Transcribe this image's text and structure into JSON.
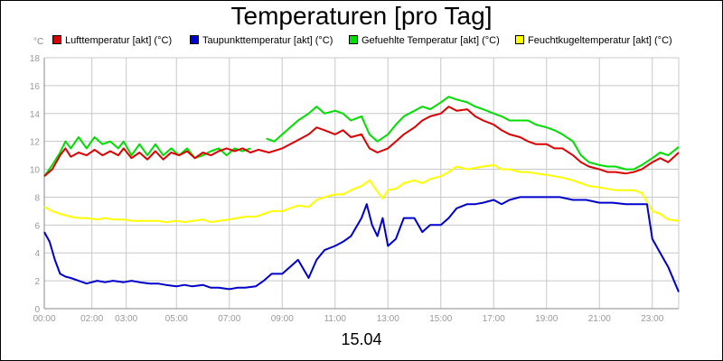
{
  "chart_data": {
    "type": "line",
    "title": "Temperaturen [pro Tag]",
    "xlabel": "15.04",
    "ylabel": "°C",
    "xlim": [
      0,
      24
    ],
    "ylim": [
      0,
      18
    ],
    "yticks": [
      0,
      2,
      4,
      6,
      8,
      10,
      12,
      14,
      16,
      18
    ],
    "xticks": [
      {
        "h": 0,
        "label": "00:00"
      },
      {
        "h": 1.8,
        "label": "02:00"
      },
      {
        "h": 3.1,
        "label": "03:00"
      },
      {
        "h": 5,
        "label": "05:00"
      },
      {
        "h": 7,
        "label": "07:00"
      },
      {
        "h": 9,
        "label": "09:00"
      },
      {
        "h": 11,
        "label": "11:00"
      },
      {
        "h": 13,
        "label": "13:00"
      },
      {
        "h": 15,
        "label": "15:00"
      },
      {
        "h": 17,
        "label": "17:00"
      },
      {
        "h": 19,
        "label": "19:00"
      },
      {
        "h": 21,
        "label": "21:00"
      },
      {
        "h": 23,
        "label": "23:00"
      }
    ],
    "grid": true,
    "legend_position": "top",
    "series": [
      {
        "name": "Lufttemperatur [akt] (°C)",
        "color": "#dd0000",
        "points": [
          [
            0,
            9.5
          ],
          [
            0.3,
            10
          ],
          [
            0.6,
            11
          ],
          [
            0.8,
            11.5
          ],
          [
            1,
            10.9
          ],
          [
            1.3,
            11.2
          ],
          [
            1.6,
            11
          ],
          [
            1.9,
            11.4
          ],
          [
            2.2,
            11
          ],
          [
            2.5,
            11.3
          ],
          [
            2.8,
            11
          ],
          [
            3,
            11.5
          ],
          [
            3.3,
            10.8
          ],
          [
            3.6,
            11.2
          ],
          [
            3.9,
            10.7
          ],
          [
            4.2,
            11.3
          ],
          [
            4.5,
            10.7
          ],
          [
            4.8,
            11.2
          ],
          [
            5.1,
            11
          ],
          [
            5.4,
            11.3
          ],
          [
            5.7,
            10.8
          ],
          [
            6,
            11.2
          ],
          [
            6.3,
            11
          ],
          [
            6.6,
            11.3
          ],
          [
            6.9,
            11.5
          ],
          [
            7.2,
            11.3
          ],
          [
            7.5,
            11.5
          ],
          [
            7.8,
            11.2
          ],
          [
            8.1,
            11.4
          ],
          [
            8.5,
            11.2
          ],
          [
            9,
            11.5
          ],
          [
            9.5,
            12
          ],
          [
            10,
            12.5
          ],
          [
            10.3,
            13
          ],
          [
            10.6,
            12.8
          ],
          [
            11,
            12.5
          ],
          [
            11.3,
            12.8
          ],
          [
            11.6,
            12.3
          ],
          [
            12,
            12.5
          ],
          [
            12.3,
            11.5
          ],
          [
            12.6,
            11.2
          ],
          [
            13,
            11.5
          ],
          [
            13.3,
            12
          ],
          [
            13.6,
            12.5
          ],
          [
            14,
            13
          ],
          [
            14.3,
            13.5
          ],
          [
            14.6,
            13.8
          ],
          [
            15,
            14
          ],
          [
            15.3,
            14.5
          ],
          [
            15.6,
            14.2
          ],
          [
            16,
            14.3
          ],
          [
            16.3,
            13.8
          ],
          [
            16.6,
            13.5
          ],
          [
            17,
            13.2
          ],
          [
            17.3,
            12.8
          ],
          [
            17.6,
            12.5
          ],
          [
            18,
            12.3
          ],
          [
            18.3,
            12
          ],
          [
            18.6,
            11.8
          ],
          [
            19,
            11.8
          ],
          [
            19.3,
            11.5
          ],
          [
            19.6,
            11.5
          ],
          [
            20,
            11
          ],
          [
            20.3,
            10.5
          ],
          [
            20.6,
            10.2
          ],
          [
            21,
            10
          ],
          [
            21.3,
            9.8
          ],
          [
            21.6,
            9.8
          ],
          [
            22,
            9.7
          ],
          [
            22.3,
            9.8
          ],
          [
            22.6,
            10
          ],
          [
            23,
            10.5
          ],
          [
            23.3,
            10.8
          ],
          [
            23.6,
            10.5
          ],
          [
            24,
            11.2
          ]
        ]
      },
      {
        "name": "Taupunkttemperatur [akt] (°C)",
        "color": "#0000cc",
        "points": [
          [
            0,
            5.5
          ],
          [
            0.2,
            4.8
          ],
          [
            0.4,
            3.5
          ],
          [
            0.6,
            2.5
          ],
          [
            0.8,
            2.3
          ],
          [
            1,
            2.2
          ],
          [
            1.3,
            2
          ],
          [
            1.6,
            1.8
          ],
          [
            2,
            2
          ],
          [
            2.3,
            1.9
          ],
          [
            2.6,
            2
          ],
          [
            3,
            1.9
          ],
          [
            3.3,
            2
          ],
          [
            3.6,
            1.9
          ],
          [
            4,
            1.8
          ],
          [
            4.3,
            1.8
          ],
          [
            4.6,
            1.7
          ],
          [
            5,
            1.6
          ],
          [
            5.3,
            1.7
          ],
          [
            5.6,
            1.6
          ],
          [
            6,
            1.7
          ],
          [
            6.3,
            1.5
          ],
          [
            6.6,
            1.5
          ],
          [
            7,
            1.4
          ],
          [
            7.3,
            1.5
          ],
          [
            7.6,
            1.5
          ],
          [
            8,
            1.6
          ],
          [
            8.3,
            2
          ],
          [
            8.6,
            2.5
          ],
          [
            9,
            2.5
          ],
          [
            9.3,
            3
          ],
          [
            9.6,
            3.5
          ],
          [
            10,
            2.2
          ],
          [
            10.3,
            3.5
          ],
          [
            10.6,
            4.2
          ],
          [
            11,
            4.5
          ],
          [
            11.3,
            4.8
          ],
          [
            11.6,
            5.2
          ],
          [
            12,
            6.5
          ],
          [
            12.2,
            7.5
          ],
          [
            12.4,
            6
          ],
          [
            12.6,
            5.2
          ],
          [
            12.8,
            6.5
          ],
          [
            13,
            4.5
          ],
          [
            13.3,
            5
          ],
          [
            13.6,
            6.5
          ],
          [
            14,
            6.5
          ],
          [
            14.3,
            5.5
          ],
          [
            14.6,
            6
          ],
          [
            15,
            6
          ],
          [
            15.3,
            6.5
          ],
          [
            15.6,
            7.2
          ],
          [
            16,
            7.5
          ],
          [
            16.3,
            7.5
          ],
          [
            16.6,
            7.6
          ],
          [
            17,
            7.8
          ],
          [
            17.3,
            7.5
          ],
          [
            17.6,
            7.8
          ],
          [
            18,
            8
          ],
          [
            18.5,
            8
          ],
          [
            19,
            8
          ],
          [
            19.5,
            8
          ],
          [
            20,
            7.8
          ],
          [
            20.5,
            7.8
          ],
          [
            21,
            7.6
          ],
          [
            21.5,
            7.6
          ],
          [
            22,
            7.5
          ],
          [
            22.5,
            7.5
          ],
          [
            22.8,
            7.5
          ],
          [
            23,
            5
          ],
          [
            23.3,
            4
          ],
          [
            23.6,
            3
          ],
          [
            24,
            1.2
          ]
        ]
      },
      {
        "name": "Gefuehlte Temperatur [akt] (°C)",
        "color": "#00dd00",
        "segments": [
          [
            [
              0,
              9.5
            ],
            [
              0.3,
              10.3
            ],
            [
              0.6,
              11.2
            ],
            [
              0.8,
              12
            ],
            [
              1,
              11.5
            ],
            [
              1.3,
              12.3
            ],
            [
              1.6,
              11.5
            ],
            [
              1.9,
              12.3
            ],
            [
              2.2,
              11.8
            ],
            [
              2.5,
              12
            ],
            [
              2.8,
              11.5
            ],
            [
              3,
              12
            ],
            [
              3.3,
              11
            ],
            [
              3.6,
              11.8
            ],
            [
              3.9,
              11
            ],
            [
              4.2,
              11.8
            ],
            [
              4.5,
              11
            ],
            [
              4.8,
              11.5
            ],
            [
              5.1,
              11
            ],
            [
              5.4,
              11.5
            ],
            [
              5.7,
              10.8
            ],
            [
              6,
              11
            ],
            [
              6.3,
              11.3
            ],
            [
              6.6,
              11.5
            ],
            [
              6.9,
              11
            ],
            [
              7.2,
              11.5
            ],
            [
              7.5,
              11.3
            ],
            [
              7.8,
              11.5
            ]
          ],
          [
            [
              8.4,
              12.2
            ],
            [
              8.7,
              12
            ],
            [
              9,
              12.5
            ],
            [
              9.3,
              13
            ],
            [
              9.6,
              13.5
            ],
            [
              10,
              14
            ],
            [
              10.3,
              14.5
            ],
            [
              10.6,
              14
            ],
            [
              11,
              14.2
            ],
            [
              11.3,
              14
            ],
            [
              11.6,
              13.5
            ],
            [
              12,
              13.8
            ],
            [
              12.3,
              12.5
            ],
            [
              12.6,
              12
            ],
            [
              13,
              12.5
            ],
            [
              13.3,
              13.2
            ],
            [
              13.6,
              13.8
            ],
            [
              14,
              14.2
            ],
            [
              14.3,
              14.5
            ],
            [
              14.6,
              14.3
            ],
            [
              15,
              14.8
            ],
            [
              15.3,
              15.2
            ],
            [
              15.6,
              15
            ],
            [
              16,
              14.8
            ],
            [
              16.3,
              14.5
            ],
            [
              16.6,
              14.3
            ],
            [
              17,
              14
            ],
            [
              17.3,
              13.8
            ],
            [
              17.6,
              13.5
            ],
            [
              18,
              13.5
            ],
            [
              18.3,
              13.5
            ],
            [
              18.6,
              13.2
            ],
            [
              19,
              13
            ],
            [
              19.3,
              12.8
            ],
            [
              19.6,
              12.5
            ],
            [
              20,
              12
            ],
            [
              20.3,
              11
            ],
            [
              20.6,
              10.5
            ],
            [
              21,
              10.3
            ],
            [
              21.3,
              10.2
            ],
            [
              21.6,
              10.2
            ],
            [
              22,
              10
            ],
            [
              22.3,
              10
            ],
            [
              22.6,
              10.3
            ],
            [
              23,
              10.8
            ],
            [
              23.3,
              11.2
            ],
            [
              23.6,
              11
            ],
            [
              24,
              11.6
            ]
          ]
        ]
      },
      {
        "name": "Feuchtkugeltemperatur [akt] (°C)",
        "color": "#ffff00",
        "points": [
          [
            0,
            7.3
          ],
          [
            0.3,
            7
          ],
          [
            0.6,
            6.8
          ],
          [
            1,
            6.6
          ],
          [
            1.3,
            6.5
          ],
          [
            1.6,
            6.5
          ],
          [
            2,
            6.4
          ],
          [
            2.3,
            6.5
          ],
          [
            2.6,
            6.4
          ],
          [
            3,
            6.4
          ],
          [
            3.3,
            6.3
          ],
          [
            3.6,
            6.3
          ],
          [
            4,
            6.3
          ],
          [
            4.3,
            6.3
          ],
          [
            4.6,
            6.2
          ],
          [
            5,
            6.3
          ],
          [
            5.3,
            6.2
          ],
          [
            5.6,
            6.3
          ],
          [
            6,
            6.4
          ],
          [
            6.3,
            6.2
          ],
          [
            6.6,
            6.3
          ],
          [
            7,
            6.4
          ],
          [
            7.3,
            6.5
          ],
          [
            7.6,
            6.6
          ],
          [
            8,
            6.6
          ],
          [
            8.3,
            6.8
          ],
          [
            8.6,
            7
          ],
          [
            9,
            7
          ],
          [
            9.3,
            7.2
          ],
          [
            9.6,
            7.4
          ],
          [
            10,
            7.3
          ],
          [
            10.3,
            7.8
          ],
          [
            10.6,
            8
          ],
          [
            11,
            8.2
          ],
          [
            11.3,
            8.2
          ],
          [
            11.6,
            8.5
          ],
          [
            12,
            8.8
          ],
          [
            12.3,
            9.2
          ],
          [
            12.6,
            8.4
          ],
          [
            12.8,
            7.9
          ],
          [
            13,
            8.5
          ],
          [
            13.3,
            8.6
          ],
          [
            13.6,
            9
          ],
          [
            14,
            9.2
          ],
          [
            14.3,
            9
          ],
          [
            14.6,
            9.3
          ],
          [
            15,
            9.5
          ],
          [
            15.3,
            9.8
          ],
          [
            15.6,
            10.2
          ],
          [
            16,
            10
          ],
          [
            16.3,
            10.1
          ],
          [
            16.6,
            10.2
          ],
          [
            17,
            10.3
          ],
          [
            17.3,
            10
          ],
          [
            17.6,
            10
          ],
          [
            18,
            9.8
          ],
          [
            18.3,
            9.8
          ],
          [
            18.6,
            9.7
          ],
          [
            19,
            9.6
          ],
          [
            19.3,
            9.5
          ],
          [
            19.6,
            9.4
          ],
          [
            20,
            9.2
          ],
          [
            20.3,
            9
          ],
          [
            20.6,
            8.8
          ],
          [
            21,
            8.7
          ],
          [
            21.3,
            8.6
          ],
          [
            21.6,
            8.5
          ],
          [
            22,
            8.5
          ],
          [
            22.3,
            8.5
          ],
          [
            22.6,
            8.3
          ],
          [
            23,
            7
          ],
          [
            23.3,
            6.8
          ],
          [
            23.6,
            6.4
          ],
          [
            24,
            6.3
          ]
        ]
      }
    ]
  }
}
